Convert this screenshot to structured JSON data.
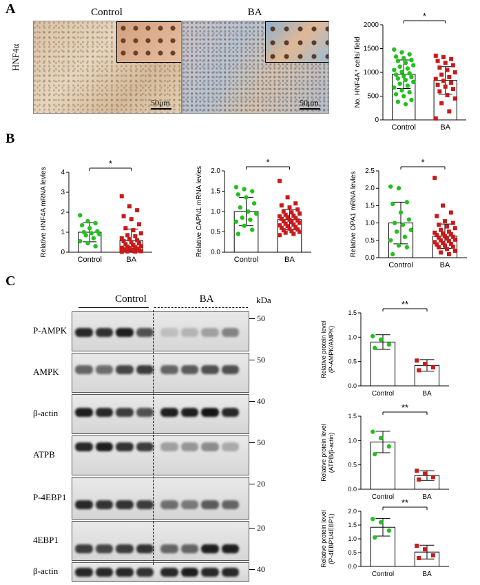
{
  "panel_a": {
    "letter": "A",
    "row_label": "HNF4α",
    "images": [
      {
        "title": "Control",
        "scale": "50μm"
      },
      {
        "title": "BA",
        "scale": "50μm"
      }
    ]
  },
  "panel_b": {
    "letter": "B"
  },
  "panel_c": {
    "letter": "C",
    "group_control": "Control",
    "group_ba": "BA",
    "kda_label": "kDa",
    "blots": [
      {
        "label": "P-AMPK",
        "markers": [
          "50"
        ]
      },
      {
        "label": "AMPK",
        "markers": [
          "50"
        ]
      },
      {
        "label": "β-actin",
        "markers": [
          "40"
        ]
      },
      {
        "label": "ATPB",
        "markers": [
          "50"
        ]
      },
      {
        "label": "P-4EBP1",
        "markers": [
          "20"
        ]
      },
      {
        "label": "4EBP1",
        "markers": [
          "20"
        ]
      },
      {
        "label": "β-actin",
        "markers": [
          "40"
        ]
      }
    ]
  },
  "chart_data": [
    {
      "id": "hnf4a-cells",
      "type": "bar",
      "categories": [
        "Control",
        "BA"
      ],
      "values": [
        960,
        830
      ],
      "errors": [
        300,
        290
      ],
      "ylabel": "No. HNF4A⁺ cells/ field",
      "ylim": [
        0,
        2000
      ],
      "yticks": [
        "0",
        "500",
        "1000",
        "1500",
        "2000"
      ],
      "significance": "*",
      "points": [
        [
          1480,
          1420,
          1380,
          1330,
          1300,
          1260,
          1240,
          1200,
          1150,
          1120,
          1080,
          1050,
          1010,
          980,
          950,
          920,
          900,
          870,
          840,
          800,
          760,
          720,
          680,
          620,
          580,
          540,
          500,
          420,
          380,
          330
        ],
        [
          1350,
          1320,
          1280,
          1240,
          1200,
          1150,
          1100,
          1050,
          1000,
          950,
          900,
          860,
          820,
          780,
          740,
          700,
          650,
          600,
          520,
          450,
          350,
          180,
          30
        ]
      ]
    },
    {
      "id": "hnf4a-mrna",
      "type": "bar",
      "categories": [
        "Control",
        "BA"
      ],
      "values": [
        1.0,
        0.58
      ],
      "errors": [
        0.48,
        0.58
      ],
      "ylabel": "Relative HNF4A mRNA levles",
      "ylim": [
        0,
        4
      ],
      "yticks": [
        "0",
        "1",
        "2",
        "3",
        "4"
      ],
      "significance": "*",
      "points": [
        [
          1.85,
          1.55,
          1.45,
          1.35,
          1.2,
          1.05,
          1.0,
          0.95,
          0.9,
          0.85,
          0.7,
          0.55,
          0.45,
          0.3
        ],
        [
          2.8,
          2.3,
          2.1,
          1.8,
          1.65,
          1.4,
          1.2,
          1.1,
          0.95,
          0.85,
          0.8,
          0.7,
          0.65,
          0.6,
          0.55,
          0.5,
          0.45,
          0.4,
          0.35,
          0.3,
          0.28,
          0.25,
          0.22,
          0.2,
          0.18,
          0.15,
          0.12,
          0.1,
          0.08,
          0.06,
          0.05,
          0.04,
          0.03,
          0.02
        ]
      ]
    },
    {
      "id": "capn1-mrna",
      "type": "bar",
      "categories": [
        "Control",
        "BA"
      ],
      "values": [
        1.0,
        0.8
      ],
      "errors": [
        0.35,
        0.25
      ],
      "ylabel": "Relative CAPN1 mRNA levles",
      "ylim": [
        0,
        2.0
      ],
      "yticks": [
        "0.0",
        "0.5",
        "1.0",
        "1.5",
        "2.0"
      ],
      "significance": "*",
      "points": [
        [
          1.6,
          1.55,
          1.5,
          1.42,
          1.35,
          1.2,
          1.1,
          1.0,
          0.95,
          0.85,
          0.8,
          0.75,
          0.65,
          0.55,
          0.45
        ],
        [
          1.75,
          1.35,
          1.2,
          1.15,
          1.1,
          1.05,
          1.0,
          0.98,
          0.95,
          0.92,
          0.9,
          0.88,
          0.86,
          0.84,
          0.82,
          0.8,
          0.78,
          0.76,
          0.74,
          0.72,
          0.7,
          0.68,
          0.66,
          0.64,
          0.62,
          0.6,
          0.58,
          0.56,
          0.54,
          0.52,
          0.5,
          0.48,
          0.45,
          0.42
        ]
      ]
    },
    {
      "id": "opa1-mrna",
      "type": "bar",
      "categories": [
        "Control",
        "BA"
      ],
      "values": [
        1.0,
        0.62
      ],
      "errors": [
        0.6,
        0.35
      ],
      "ylabel": "Relative OPA1 mRNA levles",
      "ylim": [
        0,
        2.5
      ],
      "yticks": [
        "0.0",
        "0.5",
        "1.0",
        "1.5",
        "2.0",
        "2.5"
      ],
      "significance": "*",
      "points": [
        [
          2.05,
          2.0,
          1.6,
          1.55,
          1.3,
          1.1,
          1.0,
          0.95,
          0.8,
          0.75,
          0.6,
          0.5,
          0.35,
          0.3,
          0.1
        ],
        [
          2.3,
          1.5,
          1.3,
          1.2,
          1.05,
          1.0,
          0.95,
          0.9,
          0.85,
          0.8,
          0.75,
          0.72,
          0.7,
          0.68,
          0.65,
          0.62,
          0.6,
          0.58,
          0.55,
          0.52,
          0.5,
          0.48,
          0.45,
          0.42,
          0.4,
          0.38,
          0.35,
          0.32,
          0.3,
          0.25,
          0.2,
          0.15,
          0.1
        ]
      ]
    },
    {
      "id": "p-ampk-ratio",
      "type": "bar",
      "categories": [
        "Control",
        "BA"
      ],
      "values": [
        0.9,
        0.42
      ],
      "errors": [
        0.15,
        0.12
      ],
      "ylabel": "Relative protein level\n(P-AMPK/AMPK)",
      "ylim": [
        0,
        1.5
      ],
      "yticks": [
        "0.0",
        "0.5",
        "1.0",
        "1.5"
      ],
      "significance": "**",
      "points": [
        [
          1.02,
          0.95,
          0.85,
          0.78
        ],
        [
          0.52,
          0.45,
          0.38,
          0.32
        ]
      ]
    },
    {
      "id": "atpb-ratio",
      "type": "bar",
      "categories": [
        "Control",
        "BA"
      ],
      "values": [
        0.97,
        0.28
      ],
      "errors": [
        0.22,
        0.1
      ],
      "ylabel": "Relative protein level\n(ATPB/β-actin)",
      "ylim": [
        0,
        1.5
      ],
      "yticks": [
        "0.0",
        "0.5",
        "1.0",
        "1.5"
      ],
      "significance": "**",
      "points": [
        [
          1.18,
          1.05,
          0.88,
          0.72
        ],
        [
          0.38,
          0.32,
          0.25,
          0.2
        ]
      ]
    },
    {
      "id": "p-4ebp1-ratio",
      "type": "bar",
      "categories": [
        "Control",
        "BA"
      ],
      "values": [
        1.42,
        0.52
      ],
      "errors": [
        0.32,
        0.25
      ],
      "ylabel": "Relative protein level\n(P-4EBP1/4EBP1)",
      "ylim": [
        0,
        2.0
      ],
      "yticks": [
        "0.0",
        "0.5",
        "1.0",
        "1.5",
        "2.0"
      ],
      "significance": "**",
      "points": [
        [
          1.72,
          1.6,
          1.3,
          1.05
        ],
        [
          0.75,
          0.62,
          0.4,
          0.3
        ]
      ]
    }
  ],
  "colors": {
    "control": "#22c11e",
    "ba": "#c81a1a"
  }
}
